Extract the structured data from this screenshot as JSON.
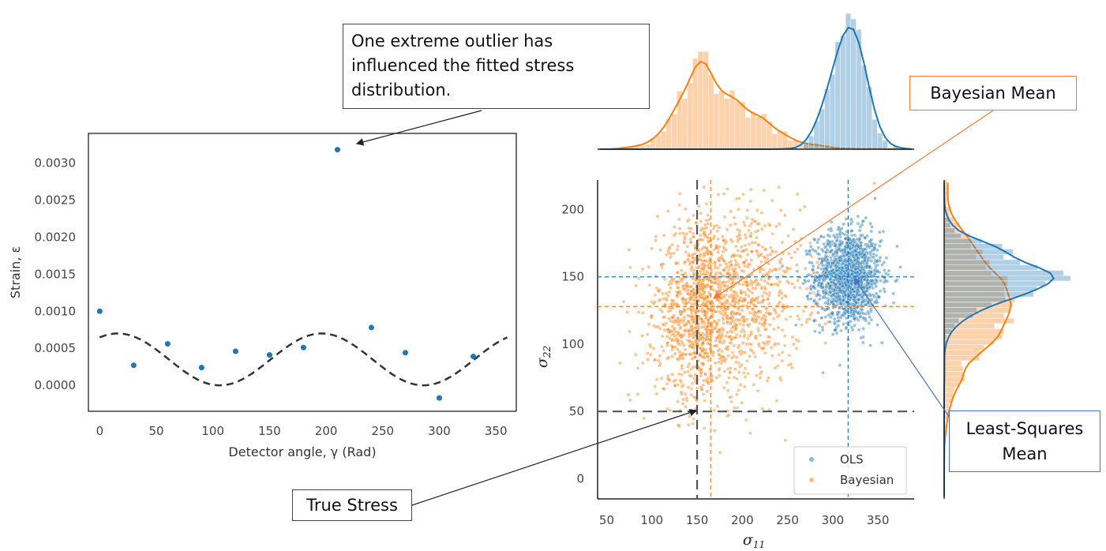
{
  "chart_data": [
    {
      "type": "scatter",
      "xlabel": "Detector angle, γ (Rad)",
      "ylabel": "Strain, ε",
      "xlim": [
        -10,
        368
      ],
      "ylim": [
        -0.00035,
        0.0034
      ],
      "xticks": [
        0,
        50,
        100,
        150,
        200,
        250,
        300,
        350
      ],
      "yticks": [
        0.0,
        0.0005,
        0.001,
        0.0015,
        0.002,
        0.0025,
        0.003
      ],
      "ytick_labels": [
        "0.0000",
        "0.0005",
        "0.0010",
        "0.0015",
        "0.0020",
        "0.0025",
        "0.0030"
      ],
      "points": {
        "x": [
          0,
          30,
          60,
          90,
          120,
          150,
          180,
          210,
          240,
          270,
          300,
          330
        ],
        "y": [
          0.001,
          0.00027,
          0.00056,
          0.00024,
          0.00046,
          0.00041,
          0.00051,
          0.00318,
          0.00078,
          0.00044,
          -0.00017,
          0.00039
        ]
      },
      "fit_curve": {
        "style": "dashed",
        "mean": 0.00035,
        "amplitude": 0.00035,
        "period": 180,
        "phase_peak": 16
      },
      "grid": false
    },
    {
      "type": "scatter",
      "xlabel": "σ11",
      "ylabel": "σ22",
      "xlim": [
        40,
        390
      ],
      "ylim": [
        -15,
        222
      ],
      "xticks": [
        50,
        100,
        150,
        200,
        250,
        300,
        350
      ],
      "yticks": [
        0,
        50,
        100,
        150,
        200
      ],
      "series": [
        {
          "name": "OLS",
          "color": "#1f77b4",
          "mean": [
            317,
            150
          ],
          "std": [
            18,
            17
          ],
          "n": 1500
        },
        {
          "name": "Bayesian",
          "color": "#ff7f0e",
          "mean": [
            165,
            128
          ],
          "std": [
            40,
            32
          ],
          "n": 1800
        }
      ],
      "reference_lines": [
        {
          "label": "True Stress",
          "x": 150,
          "y": 50,
          "style": "dashed",
          "color": "#555555"
        },
        {
          "label": "OLS mean",
          "x": 317,
          "y": 150,
          "style": "dashed",
          "color": "#1f77b4"
        },
        {
          "label": "Bayesian mean",
          "x": 165,
          "y": 128,
          "style": "dashed",
          "color": "#ff7f0e"
        }
      ],
      "marginals": "histogram + KDE on top (σ11) and right (σ22)",
      "legend": "bottom-right",
      "grid": false
    }
  ],
  "annotations": {
    "outlier_lines": [
      "One extreme outlier has",
      "influenced  the fitted stress",
      "distribution."
    ],
    "bayes_mean": "Bayesian Mean",
    "least_squares": [
      "Least-Squares",
      "Mean"
    ],
    "true_stress": "True Stress"
  },
  "colors": {
    "ols": "#1f77b4",
    "bayes": "#ff7f0e",
    "true": "#555555",
    "fit": "#333333"
  }
}
